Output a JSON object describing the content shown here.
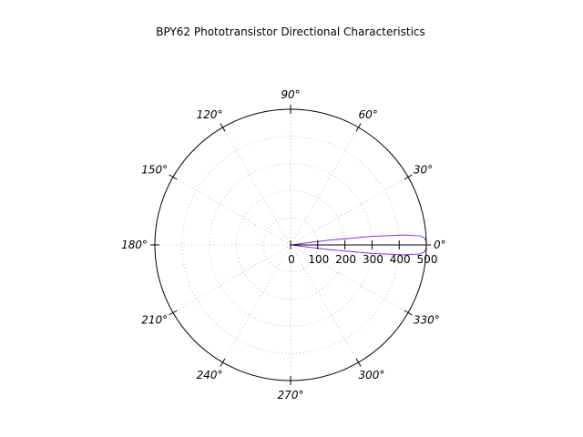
{
  "chart_data": {
    "type": "polar",
    "title": "BPY62 Phototransistor Directional Characteristics",
    "angle_unit": "degrees",
    "angle_ticks": [
      0,
      30,
      60,
      90,
      120,
      150,
      180,
      210,
      240,
      270,
      300,
      330
    ],
    "angle_tick_labels": [
      "0°",
      "30°",
      "60°",
      "90°",
      "120°",
      "150°",
      "180°",
      "210°",
      "240°",
      "270°",
      "300°",
      "330°"
    ],
    "r_ticks": [
      0,
      100,
      200,
      300,
      400,
      500
    ],
    "r_tick_labels": [
      "0",
      "100",
      "200",
      "300",
      "400",
      "500"
    ],
    "rlim": [
      0,
      500
    ],
    "grid": true,
    "series": [
      {
        "color": "#8a2be2",
        "theta": [
          -8,
          -7,
          -6,
          -5,
          -4,
          -3,
          -2,
          -1,
          0,
          1,
          2,
          3,
          4,
          5,
          6,
          7,
          8
        ],
        "r": [
          10,
          140,
          300,
          420,
          478,
          493,
          498,
          500,
          500,
          500,
          498,
          493,
          478,
          420,
          300,
          140,
          10
        ]
      },
      {
        "color": "#000000",
        "theta": [
          0,
          0
        ],
        "r": [
          0,
          500
        ]
      }
    ]
  }
}
